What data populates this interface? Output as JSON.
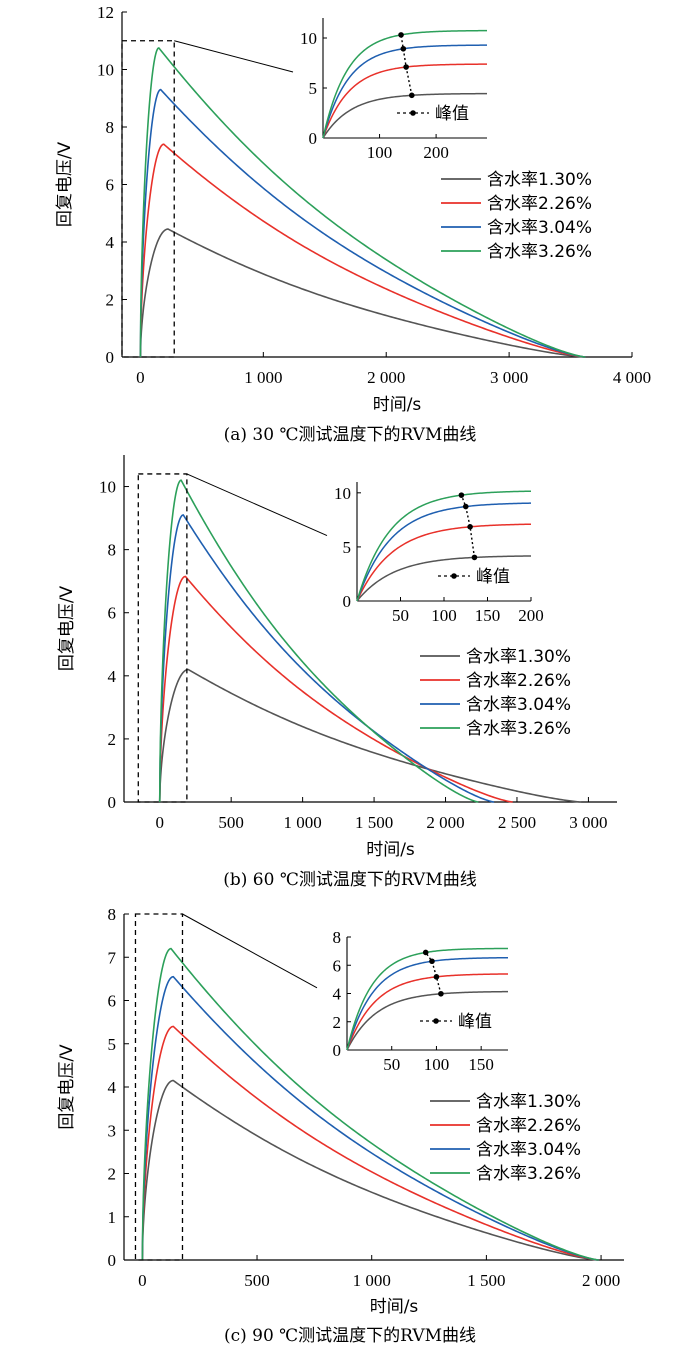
{
  "figure": {
    "panels": [
      {
        "caption": "(a)  30 ℃测试温度下的RVM曲线",
        "xlabel": "时间/s",
        "ylabel": "回复电压/V",
        "xticks": [
          "0",
          "1 000",
          "2 000",
          "3 000",
          "4 000"
        ],
        "yticks": [
          "0",
          "2",
          "4",
          "6",
          "8",
          "10",
          "12"
        ],
        "inset_xticks": [
          "100",
          "200"
        ],
        "inset_yticks": [
          "0",
          "5",
          "10"
        ],
        "inset_legend": "峰值"
      },
      {
        "caption": "(b)  60 ℃测试温度下的RVM曲线",
        "xlabel": "时间/s",
        "ylabel": "回复电压/V",
        "xticks": [
          "0",
          "500",
          "1 000",
          "1 500",
          "2 000",
          "2 500",
          "3 000"
        ],
        "yticks": [
          "0",
          "2",
          "4",
          "6",
          "8",
          "10"
        ],
        "inset_xticks": [
          "50",
          "100",
          "150",
          "200"
        ],
        "inset_yticks": [
          "0",
          "5",
          "10"
        ],
        "inset_legend": "峰值"
      },
      {
        "caption": "(c)  90 ℃测试温度下的RVM曲线",
        "xlabel": "时间/s",
        "ylabel": "回复电压/V",
        "xticks": [
          "0",
          "500",
          "1 000",
          "1 500",
          "2 000"
        ],
        "yticks": [
          "0",
          "1",
          "2",
          "3",
          "4",
          "5",
          "6",
          "7",
          "8"
        ],
        "inset_xticks": [
          "50",
          "100",
          "150"
        ],
        "inset_yticks": [
          "0",
          "2",
          "4",
          "6",
          "8"
        ],
        "inset_legend": "峰值"
      }
    ]
  },
  "chart_data": [
    {
      "type": "line",
      "title": "(a)  30 ℃测试温度下的RVM曲线",
      "xlabel": "时间/s",
      "ylabel": "回复电压/V",
      "xlim": [
        -150,
        4000
      ],
      "ylim": [
        0,
        12
      ],
      "legend_position": "right",
      "colors": [
        "#555555",
        "#e8312a",
        "#1f5fb0",
        "#2ca05a"
      ],
      "series": [
        {
          "name": "含水率1.30%",
          "peak": 4.45,
          "peak_time": 225,
          "zero_time": 3620
        },
        {
          "name": "含水率2.26%",
          "peak": 7.4,
          "peak_time": 190,
          "zero_time": 3620
        },
        {
          "name": "含水率3.04%",
          "peak": 9.3,
          "peak_time": 165,
          "zero_time": 3620
        },
        {
          "name": "含水率3.26%",
          "peak": 10.75,
          "peak_time": 150,
          "zero_time": 3620
        }
      ],
      "zoom_box": {
        "x": [
          -150,
          275
        ],
        "y": [
          0,
          11
        ]
      },
      "inset": {
        "xlim": [
          0,
          290
        ],
        "ylim": [
          0,
          12
        ],
        "peak_times": [
          157,
          147,
          142,
          138
        ],
        "legend": "峰值"
      }
    },
    {
      "type": "line",
      "title": "(b)  60 ℃测试温度下的RVM曲线",
      "xlabel": "时间/s",
      "ylabel": "回复电压/V",
      "xlim": [
        -250,
        3200
      ],
      "ylim": [
        0,
        11
      ],
      "legend_position": "right",
      "colors": [
        "#555555",
        "#e8312a",
        "#1f5fb0",
        "#2ca05a"
      ],
      "series": [
        {
          "name": "含水率1.30%",
          "peak": 4.2,
          "peak_time": 200,
          "zero_time": 2950
        },
        {
          "name": "含水率2.26%",
          "peak": 7.15,
          "peak_time": 180,
          "zero_time": 2470
        },
        {
          "name": "含水率3.04%",
          "peak": 9.1,
          "peak_time": 165,
          "zero_time": 2340
        },
        {
          "name": "含水率3.26%",
          "peak": 10.2,
          "peak_time": 150,
          "zero_time": 2230
        }
      ],
      "zoom_box": {
        "x": [
          -150,
          190
        ],
        "y": [
          0,
          10.4
        ]
      },
      "inset": {
        "xlim": [
          0,
          200
        ],
        "ylim": [
          0,
          11
        ],
        "peak_times": [
          135,
          130,
          125,
          120
        ],
        "legend": "峰值"
      }
    },
    {
      "type": "line",
      "title": "(c)  90 ℃测试温度下的RVM曲线",
      "xlabel": "时间/s",
      "ylabel": "回复电压/V",
      "xlim": [
        -80,
        2100
      ],
      "ylim": [
        0,
        8
      ],
      "legend_position": "right",
      "colors": [
        "#555555",
        "#e8312a",
        "#1f5fb0",
        "#2ca05a"
      ],
      "series": [
        {
          "name": "含水率1.30%",
          "peak": 4.15,
          "peak_time": 135,
          "zero_time": 1990
        },
        {
          "name": "含水率2.26%",
          "peak": 5.4,
          "peak_time": 135,
          "zero_time": 1990
        },
        {
          "name": "含水率3.04%",
          "peak": 6.55,
          "peak_time": 135,
          "zero_time": 1990
        },
        {
          "name": "含水率3.26%",
          "peak": 7.2,
          "peak_time": 125,
          "zero_time": 1990
        }
      ],
      "zoom_box": {
        "x": [
          -30,
          175
        ],
        "y": [
          0,
          8
        ]
      },
      "inset": {
        "xlim": [
          0,
          180
        ],
        "ylim": [
          0,
          8
        ],
        "peak_times": [
          105,
          100,
          95,
          88
        ],
        "legend": "峰值"
      }
    }
  ]
}
